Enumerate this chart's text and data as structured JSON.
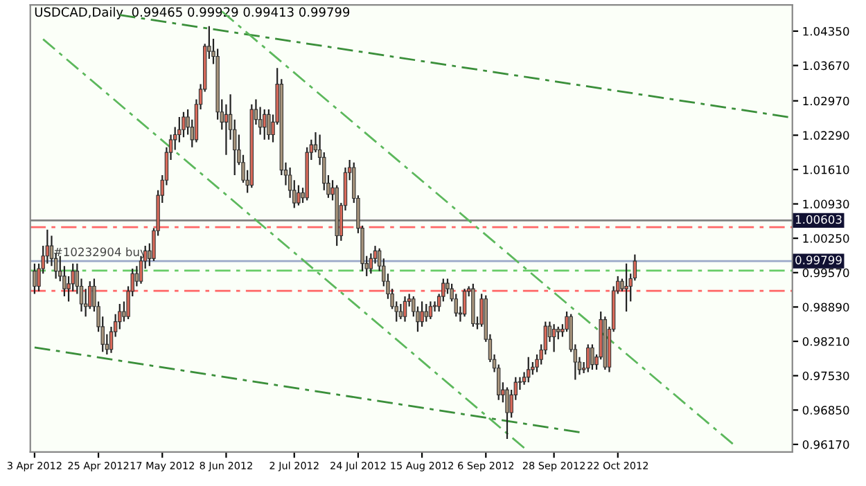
{
  "chart_data": {
    "type": "candlestick",
    "title": "USDCAD,Daily  0.99465 0.99929 0.99413 0.99799",
    "categories": [
      "3 Apr 2012",
      null,
      null,
      null,
      null,
      null,
      null,
      null,
      null,
      null,
      null,
      null,
      null,
      null,
      null,
      "25 Apr 2012",
      null,
      null,
      null,
      null,
      null,
      null,
      null,
      null,
      null,
      null,
      null,
      null,
      null,
      null,
      "17 May 2012",
      null,
      null,
      null,
      null,
      null,
      null,
      null,
      null,
      null,
      null,
      null,
      null,
      null,
      null,
      "8 Jun 2012",
      null,
      null,
      null,
      null,
      null,
      null,
      null,
      null,
      null,
      null,
      null,
      null,
      null,
      null,
      null,
      "2 Jul 2012",
      null,
      null,
      null,
      null,
      null,
      null,
      null,
      null,
      null,
      null,
      null,
      null,
      null,
      null,
      "24 Jul 2012",
      null,
      null,
      null,
      null,
      null,
      null,
      null,
      null,
      null,
      null,
      null,
      null,
      null,
      null,
      "15 Aug 2012",
      null,
      null,
      null,
      null,
      null,
      null,
      null,
      null,
      null,
      null,
      null,
      null,
      null,
      null,
      "6 Sep 2012",
      null,
      null,
      null,
      null,
      null,
      null,
      null,
      null,
      null,
      null,
      null,
      null,
      null,
      null,
      null,
      "28 Sep 2012",
      null,
      null,
      null,
      null,
      null,
      null,
      null,
      null,
      null,
      null,
      null,
      null,
      null,
      null,
      "22 Oct 2012",
      null,
      null,
      null,
      null,
      null,
      null,
      null,
      null,
      null,
      null,
      null,
      null,
      null,
      null,
      null,
      null,
      null,
      null,
      null,
      null,
      null,
      null,
      null,
      null,
      null,
      null,
      null,
      null,
      null,
      null,
      null,
      null,
      null,
      null,
      null,
      null,
      null,
      null,
      null,
      null
    ],
    "ohlc": [
      [
        0.996,
        0.9975,
        0.9915,
        0.993
      ],
      [
        0.993,
        0.9975,
        0.992,
        0.9965
      ],
      [
        0.9965,
        1.001,
        0.9955,
        0.999
      ],
      [
        0.999,
        1.0042,
        0.9975,
        1.001
      ],
      [
        1.001,
        1.003,
        0.997,
        0.9985
      ],
      [
        0.9985,
        0.9995,
        0.9945,
        0.996
      ],
      [
        0.996,
        0.999,
        0.994,
        0.995
      ],
      [
        0.995,
        0.997,
        0.991,
        0.9925
      ],
      [
        0.9925,
        0.995,
        0.99,
        0.9935
      ],
      [
        0.9935,
        0.9975,
        0.992,
        0.996
      ],
      [
        0.996,
        0.9975,
        0.9915,
        0.993
      ],
      [
        0.993,
        0.9945,
        0.988,
        0.9895
      ],
      [
        0.9895,
        0.9925,
        0.987,
        0.989
      ],
      [
        0.989,
        0.994,
        0.9885,
        0.993
      ],
      [
        0.993,
        0.9945,
        0.988,
        0.989
      ],
      [
        0.989,
        0.99,
        0.984,
        0.985
      ],
      [
        0.985,
        0.987,
        0.98,
        0.9815
      ],
      [
        0.9815,
        0.9835,
        0.9795,
        0.9805
      ],
      [
        0.9805,
        0.985,
        0.9798,
        0.984
      ],
      [
        0.984,
        0.9875,
        0.983,
        0.986
      ],
      [
        0.986,
        0.9895,
        0.9845,
        0.988
      ],
      [
        0.988,
        0.99,
        0.986,
        0.987
      ],
      [
        0.987,
        0.993,
        0.9865,
        0.992
      ],
      [
        0.992,
        0.9965,
        0.991,
        0.9955
      ],
      [
        0.9955,
        0.997,
        0.993,
        0.994
      ],
      [
        0.994,
        0.999,
        0.9935,
        0.998
      ],
      [
        0.998,
        1.001,
        0.9965,
        1.0
      ],
      [
        1.0,
        1.0015,
        0.997,
        0.9985
      ],
      [
        0.9985,
        1.0045,
        0.998,
        1.004
      ],
      [
        1.004,
        1.012,
        1.003,
        1.011
      ],
      [
        1.011,
        1.015,
        1.0095,
        1.014
      ],
      [
        1.014,
        1.0205,
        1.013,
        1.0195
      ],
      [
        1.0195,
        1.023,
        1.018,
        1.022
      ],
      [
        1.022,
        1.0245,
        1.02,
        1.023
      ],
      [
        1.023,
        1.0265,
        1.0215,
        1.024
      ],
      [
        1.024,
        1.0275,
        1.0225,
        1.0265
      ],
      [
        1.0265,
        1.028,
        1.023,
        1.0245
      ],
      [
        1.0245,
        1.026,
        1.0205,
        1.022
      ],
      [
        1.022,
        1.03,
        1.0215,
        1.029
      ],
      [
        1.029,
        1.033,
        1.028,
        1.032
      ],
      [
        1.032,
        1.041,
        1.0315,
        1.0405
      ],
      [
        1.0405,
        1.0445,
        1.038,
        1.0395
      ],
      [
        1.0395,
        1.042,
        1.037,
        1.0385
      ],
      [
        1.0385,
        1.04,
        1.026,
        1.0275
      ],
      [
        1.0275,
        1.03,
        1.024,
        1.0255
      ],
      [
        1.0255,
        1.029,
        1.019,
        1.027
      ],
      [
        1.027,
        1.031,
        1.022,
        1.024
      ],
      [
        1.024,
        1.026,
        1.015,
        1.02
      ],
      [
        1.02,
        1.023,
        1.017,
        1.0175
      ],
      [
        1.0175,
        1.019,
        1.0135,
        1.014
      ],
      [
        1.014,
        1.016,
        1.0115,
        1.013
      ],
      [
        1.013,
        1.029,
        1.0125,
        1.028
      ],
      [
        1.028,
        1.03,
        1.025,
        1.026
      ],
      [
        1.026,
        1.0285,
        1.023,
        1.0245
      ],
      [
        1.0245,
        1.028,
        1.022,
        1.027
      ],
      [
        1.027,
        1.028,
        1.022,
        1.023
      ],
      [
        1.023,
        1.027,
        1.0215,
        1.0255
      ],
      [
        1.0255,
        1.0362,
        1.025,
        1.033
      ],
      [
        1.033,
        1.034,
        1.015,
        1.016
      ],
      [
        1.016,
        1.0175,
        1.013,
        1.015
      ],
      [
        1.015,
        1.0165,
        1.0105,
        1.012
      ],
      [
        1.012,
        1.014,
        1.0085,
        1.0095
      ],
      [
        1.0095,
        1.013,
        1.009,
        1.0115
      ],
      [
        1.0115,
        1.0125,
        1.0095,
        1.0105
      ],
      [
        1.0105,
        1.0205,
        1.01,
        1.0195
      ],
      [
        1.0195,
        1.022,
        1.018,
        1.021
      ],
      [
        1.021,
        1.0235,
        1.0195,
        1.02
      ],
      [
        1.02,
        1.023,
        1.017,
        1.0185
      ],
      [
        1.0185,
        1.0195,
        1.012,
        1.0134
      ],
      [
        1.0134,
        1.015,
        1.0105,
        1.0112
      ],
      [
        1.0112,
        1.014,
        1.01,
        1.0125
      ],
      [
        1.0125,
        1.013,
        1.001,
        1.003
      ],
      [
        1.003,
        1.0095,
        1.002,
        1.009
      ],
      [
        1.009,
        1.0165,
        1.008,
        1.0155
      ],
      [
        1.0155,
        1.018,
        1.014,
        1.0165
      ],
      [
        1.0165,
        1.0175,
        1.0095,
        1.0104
      ],
      [
        1.0104,
        1.011,
        1.0035,
        1.0045
      ],
      [
        1.0045,
        1.005,
        0.996,
        0.9975
      ],
      [
        0.9975,
        0.999,
        0.995,
        0.9965
      ],
      [
        0.9965,
        0.9995,
        0.9955,
        0.9985
      ],
      [
        0.9985,
        1.001,
        0.9975,
        1.0
      ],
      [
        1.0,
        1.0005,
        0.996,
        0.997
      ],
      [
        0.997,
        0.9985,
        0.993,
        0.994
      ],
      [
        0.994,
        0.9955,
        0.9905,
        0.9915
      ],
      [
        0.9915,
        0.9925,
        0.9885,
        0.989
      ],
      [
        0.989,
        0.99,
        0.986,
        0.988
      ],
      [
        0.988,
        0.9895,
        0.9865,
        0.987
      ],
      [
        0.987,
        0.991,
        0.986,
        0.99
      ],
      [
        0.99,
        0.9915,
        0.989,
        0.9905
      ],
      [
        0.9905,
        0.991,
        0.987,
        0.988
      ],
      [
        0.988,
        0.989,
        0.984,
        0.986
      ],
      [
        0.986,
        0.99,
        0.985,
        0.988
      ],
      [
        0.988,
        0.9895,
        0.986,
        0.987
      ],
      [
        0.987,
        0.99,
        0.9865,
        0.989
      ],
      [
        0.989,
        0.99,
        0.988,
        0.989
      ],
      [
        0.989,
        0.9915,
        0.988,
        0.991
      ],
      [
        0.991,
        0.9945,
        0.99,
        0.9936
      ],
      [
        0.9936,
        0.9945,
        0.9915,
        0.9925
      ],
      [
        0.9925,
        0.9935,
        0.99,
        0.9905
      ],
      [
        0.9905,
        0.9915,
        0.987,
        0.9877
      ],
      [
        0.9877,
        0.989,
        0.986,
        0.9875
      ],
      [
        0.9875,
        0.9925,
        0.987,
        0.992
      ],
      [
        0.992,
        0.993,
        0.991,
        0.9925
      ],
      [
        0.9925,
        0.9935,
        0.985,
        0.9856
      ],
      [
        0.9856,
        0.987,
        0.9845,
        0.9855
      ],
      [
        0.9855,
        0.9915,
        0.985,
        0.9905
      ],
      [
        0.9905,
        0.9912,
        0.982,
        0.9825
      ],
      [
        0.9825,
        0.9835,
        0.978,
        0.9785
      ],
      [
        0.9785,
        0.9795,
        0.976,
        0.9768
      ],
      [
        0.9768,
        0.9775,
        0.9705,
        0.9715
      ],
      [
        0.9715,
        0.974,
        0.97,
        0.9725
      ],
      [
        0.9725,
        0.973,
        0.9628,
        0.968
      ],
      [
        0.968,
        0.9725,
        0.967,
        0.9715
      ],
      [
        0.9715,
        0.975,
        0.9705,
        0.974
      ],
      [
        0.974,
        0.975,
        0.9725,
        0.9741
      ],
      [
        0.9741,
        0.976,
        0.9735,
        0.975
      ],
      [
        0.975,
        0.979,
        0.974,
        0.9765
      ],
      [
        0.9765,
        0.978,
        0.9755,
        0.977
      ],
      [
        0.977,
        0.9795,
        0.976,
        0.9785
      ],
      [
        0.9785,
        0.9815,
        0.9775,
        0.9804
      ],
      [
        0.9804,
        0.986,
        0.9795,
        0.9851
      ],
      [
        0.9851,
        0.986,
        0.982,
        0.983
      ],
      [
        0.983,
        0.9855,
        0.98,
        0.9845
      ],
      [
        0.9845,
        0.985,
        0.9825,
        0.984
      ],
      [
        0.984,
        0.9855,
        0.983,
        0.9845
      ],
      [
        0.9845,
        0.988,
        0.984,
        0.987
      ],
      [
        0.987,
        0.9875,
        0.98,
        0.9805
      ],
      [
        0.9805,
        0.9815,
        0.9745,
        0.978
      ],
      [
        0.978,
        0.979,
        0.9755,
        0.9765
      ],
      [
        0.9765,
        0.978,
        0.9758,
        0.9768
      ],
      [
        0.9768,
        0.9815,
        0.976,
        0.9808
      ],
      [
        0.9808,
        0.9815,
        0.9765,
        0.9775
      ],
      [
        0.9775,
        0.9795,
        0.9765,
        0.979
      ],
      [
        0.979,
        0.988,
        0.9785,
        0.9864
      ],
      [
        0.9864,
        0.987,
        0.9765,
        0.977
      ],
      [
        0.977,
        0.985,
        0.976,
        0.9845
      ],
      [
        0.9845,
        0.993,
        0.984,
        0.9921
      ],
      [
        0.9921,
        0.995,
        0.9915,
        0.994
      ],
      [
        0.994,
        0.9945,
        0.992,
        0.9925
      ],
      [
        0.9925,
        0.9975,
        0.988,
        0.993
      ],
      [
        0.993,
        0.9955,
        0.99,
        0.9945
      ],
      [
        0.99465,
        0.99929,
        0.99413,
        0.99799
      ],
      null,
      null,
      null,
      null,
      null,
      null,
      null,
      null,
      null,
      null,
      null,
      null,
      null,
      null,
      null,
      null,
      null,
      null,
      null,
      null,
      null,
      null,
      null,
      null,
      null,
      null,
      null,
      null,
      null,
      null,
      null,
      null,
      null,
      null,
      null,
      null
    ],
    "series": [
      {
        "type": "line",
        "color": "#3a8f3a",
        "line_style": "dashed",
        "values": [
          null,
          null,
          null,
          null,
          null,
          null,
          null,
          null,
          null,
          null,
          null,
          null,
          null,
          null,
          null,
          null,
          null,
          null,
          null,
          null,
          1.0467,
          null,
          null,
          null,
          null,
          null,
          null,
          null,
          null,
          null,
          null,
          null,
          null,
          null,
          null,
          null,
          null,
          null,
          null,
          null,
          null,
          null,
          null,
          null,
          null,
          null,
          null,
          null,
          null,
          null,
          null,
          null,
          null,
          null,
          null,
          null,
          null,
          null,
          null,
          null,
          null,
          null,
          null,
          null,
          null,
          null,
          null,
          null,
          null,
          null,
          null,
          null,
          null,
          null,
          null,
          null,
          null,
          null,
          null,
          null,
          null,
          null,
          null,
          null,
          null,
          null,
          null,
          null,
          null,
          null,
          null,
          null,
          null,
          null,
          null,
          null,
          null,
          null,
          null,
          null,
          null,
          null,
          null,
          null,
          null,
          null,
          null,
          null,
          null,
          null,
          null,
          null,
          null,
          null,
          null,
          null,
          null,
          null,
          null,
          null,
          null,
          null,
          null,
          null,
          null,
          null,
          null,
          null,
          null,
          null,
          null,
          null,
          null,
          null,
          null,
          null,
          null,
          null,
          null,
          null,
          null,
          null,
          null,
          null,
          null,
          null,
          null,
          null,
          null,
          null,
          null,
          null,
          null,
          null,
          null,
          null,
          null,
          null,
          null,
          null,
          null,
          null,
          null,
          null,
          null,
          null,
          null,
          null,
          null,
          null,
          null,
          null,
          null,
          null,
          null,
          null,
          null,
          1.0265
        ]
      },
      {
        "type": "line",
        "color": "#5cb85c",
        "line_style": "dashed",
        "values": [
          null,
          null,
          1.0419,
          null,
          null,
          null,
          null,
          null,
          null,
          null,
          null,
          null,
          null,
          null,
          null,
          null,
          null,
          null,
          null,
          null,
          null,
          null,
          null,
          null,
          null,
          null,
          null,
          null,
          null,
          null,
          null,
          null,
          null,
          null,
          null,
          null,
          null,
          null,
          null,
          null,
          null,
          null,
          null,
          null,
          null,
          null,
          null,
          null,
          null,
          null,
          null,
          null,
          null,
          null,
          null,
          null,
          null,
          null,
          null,
          null,
          null,
          null,
          null,
          null,
          null,
          null,
          null,
          null,
          null,
          null,
          null,
          null,
          null,
          null,
          null,
          null,
          null,
          null,
          null,
          null,
          null,
          null,
          null,
          null,
          null,
          null,
          null,
          null,
          null,
          null,
          null,
          null,
          null,
          null,
          null,
          null,
          null,
          null,
          null,
          null,
          null,
          null,
          null,
          null,
          null,
          null,
          null,
          null,
          null,
          null,
          null,
          null,
          null,
          null,
          null,
          0.961,
          null,
          null,
          null,
          null,
          null,
          null,
          null,
          null,
          null,
          null,
          null,
          null,
          null,
          null,
          null,
          null,
          null,
          null,
          null,
          null,
          null,
          null,
          null,
          null,
          null,
          null,
          null,
          null,
          null,
          null,
          null,
          null,
          null,
          null,
          null,
          null,
          null,
          null,
          null,
          null,
          null,
          null,
          null,
          null,
          null,
          null,
          null,
          null,
          null,
          null,
          null,
          null,
          null,
          null,
          null,
          null,
          null,
          null,
          null,
          null,
          null,
          null
        ]
      },
      {
        "type": "line",
        "color": "#5cb85c",
        "line_style": "dashed",
        "values": [
          null,
          null,
          null,
          null,
          null,
          null,
          null,
          null,
          null,
          null,
          null,
          null,
          null,
          null,
          null,
          null,
          null,
          null,
          null,
          null,
          null,
          null,
          null,
          null,
          null,
          null,
          null,
          null,
          null,
          null,
          null,
          null,
          null,
          null,
          null,
          null,
          null,
          null,
          null,
          null,
          null,
          null,
          null,
          null,
          1.0474,
          null,
          null,
          null,
          null,
          null,
          null,
          null,
          null,
          null,
          null,
          null,
          null,
          null,
          null,
          null,
          null,
          null,
          null,
          null,
          null,
          null,
          null,
          null,
          null,
          null,
          null,
          null,
          null,
          null,
          null,
          null,
          null,
          null,
          null,
          null,
          null,
          null,
          null,
          null,
          null,
          null,
          null,
          null,
          null,
          null,
          null,
          null,
          null,
          null,
          null,
          null,
          null,
          null,
          null,
          null,
          null,
          null,
          null,
          null,
          null,
          null,
          null,
          null,
          null,
          null,
          null,
          null,
          null,
          null,
          null,
          null,
          null,
          null,
          null,
          null,
          null,
          null,
          null,
          null,
          null,
          null,
          null,
          null,
          null,
          null,
          null,
          null,
          null,
          null,
          null,
          null,
          null,
          null,
          null,
          null,
          null,
          null,
          null,
          null,
          null,
          null,
          null,
          null,
          null,
          null,
          null,
          null,
          null,
          null,
          null,
          null,
          null,
          null,
          null,
          null,
          null,
          null,
          null,
          null,
          0.9618,
          null,
          null,
          null,
          null,
          null,
          null,
          null,
          null,
          null,
          null,
          null,
          null,
          null
        ]
      },
      {
        "type": "line",
        "color": "#3a8f3a",
        "line_style": "dashed",
        "values": [
          0.9809,
          null,
          null,
          null,
          null,
          null,
          null,
          null,
          null,
          null,
          null,
          null,
          null,
          null,
          null,
          null,
          null,
          null,
          null,
          null,
          null,
          null,
          null,
          null,
          null,
          null,
          null,
          null,
          null,
          null,
          null,
          null,
          null,
          null,
          null,
          null,
          null,
          null,
          null,
          null,
          null,
          null,
          null,
          null,
          null,
          null,
          null,
          null,
          null,
          null,
          null,
          null,
          null,
          null,
          null,
          null,
          null,
          null,
          null,
          null,
          null,
          null,
          null,
          null,
          null,
          null,
          null,
          null,
          null,
          null,
          null,
          null,
          null,
          null,
          null,
          null,
          null,
          null,
          null,
          null,
          null,
          null,
          null,
          null,
          null,
          null,
          null,
          null,
          null,
          null,
          null,
          null,
          null,
          null,
          null,
          null,
          null,
          null,
          null,
          null,
          null,
          null,
          null,
          null,
          null,
          null,
          null,
          null,
          null,
          null,
          null,
          null,
          null,
          null,
          null,
          null,
          null,
          null,
          null,
          null,
          null,
          null,
          null,
          null,
          null,
          null,
          null,
          null,
          0.9641,
          null,
          null,
          null,
          null,
          null,
          null,
          null,
          null,
          null,
          null,
          null,
          null,
          null,
          null,
          null,
          null,
          null,
          null,
          null,
          null,
          null,
          null,
          null,
          null,
          null,
          null,
          null,
          null,
          null,
          null,
          null,
          null,
          null,
          null,
          null,
          null,
          null,
          null,
          null,
          null,
          null,
          null,
          null,
          null,
          null,
          null,
          null,
          null,
          null
        ]
      }
    ],
    "ylim": [
      0.9602,
      1.0487
    ],
    "yticks": [
      {
        "value": 1.0435,
        "label": "1.04350"
      },
      {
        "value": 1.0367,
        "label": "1.03670"
      },
      {
        "value": 1.0297,
        "label": "1.02970"
      },
      {
        "value": 1.0229,
        "label": "1.02290"
      },
      {
        "value": 1.0161,
        "label": "1.01610"
      },
      {
        "value": 1.0093,
        "label": "1.00930"
      },
      {
        "value": 1.0025,
        "label": "1.00250"
      },
      {
        "value": 0.9957,
        "label": "0.99570"
      },
      {
        "value": 0.9889,
        "label": "0.98890"
      },
      {
        "value": 0.9821,
        "label": "0.98210"
      },
      {
        "value": 0.9753,
        "label": "0.97530"
      },
      {
        "value": 0.9685,
        "label": "0.96850"
      },
      {
        "value": 0.9617,
        "label": "0.96170"
      }
    ],
    "ref_lines": [
      {
        "axis": "y",
        "value": 1.00603,
        "label": "1.00603",
        "color": "#808080",
        "line_style": "solid"
      },
      {
        "axis": "y",
        "value": 0.99799,
        "label": "0.99799",
        "color": "#9aa8c8",
        "line_style": "solid"
      },
      {
        "axis": "y",
        "value": 1.0047,
        "color": "#ff6666",
        "line_style": "dashed"
      },
      {
        "axis": "y",
        "value": 0.9921,
        "color": "#ff6666",
        "line_style": "dashed"
      },
      {
        "axis": "y",
        "value": 0.9961,
        "color": "#66cc66",
        "line_style": "dashed"
      }
    ],
    "annotations": [
      {
        "text": "#10232904 buy",
        "y": 0.9985
      }
    ],
    "grid": false,
    "legend": false
  }
}
